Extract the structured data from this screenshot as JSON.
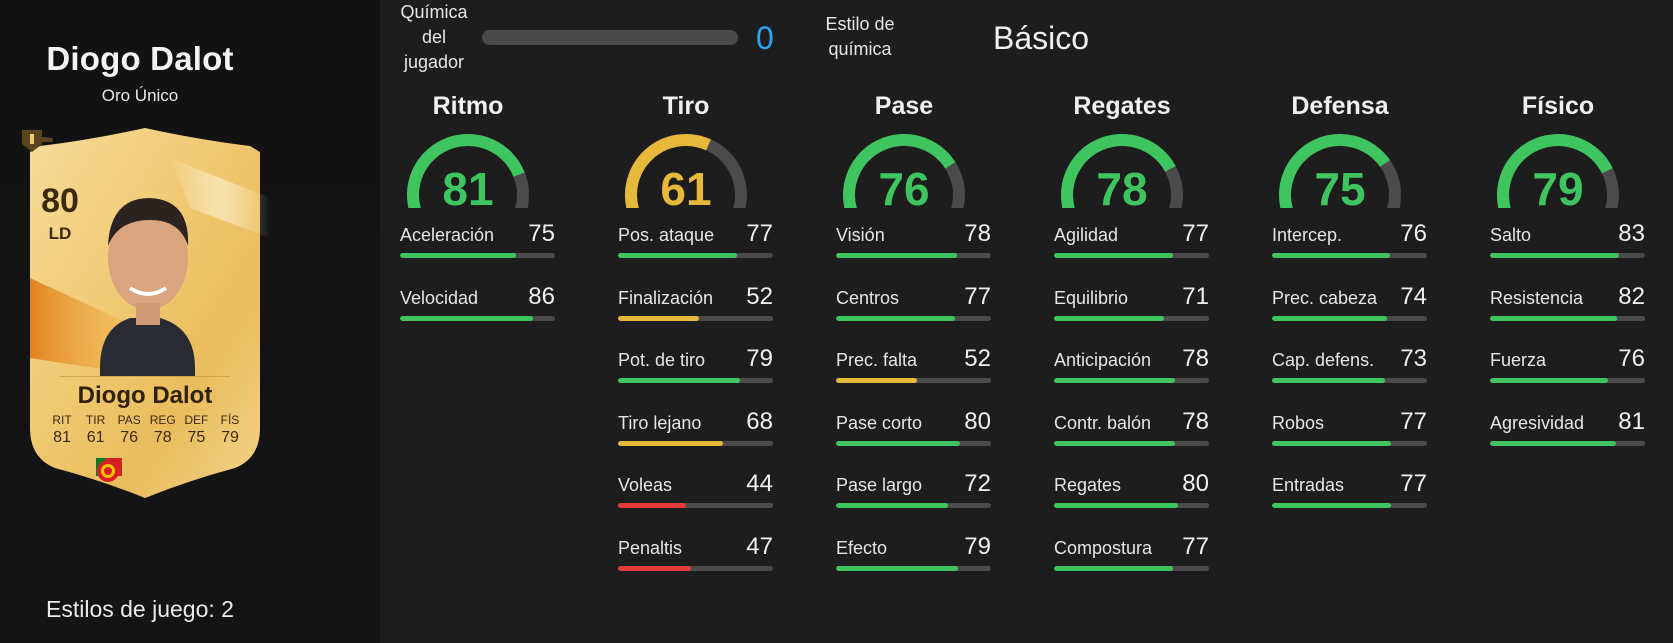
{
  "player": {
    "name": "Diogo Dalot",
    "card_type": "Oro Único",
    "playstyles": "Estilos de juego: 2"
  },
  "card": {
    "overall": "80",
    "position": "LD",
    "name": "Diogo Dalot",
    "stats": [
      {
        "label": "RIT",
        "value": "81"
      },
      {
        "label": "TIR",
        "value": "61"
      },
      {
        "label": "PAS",
        "value": "76"
      },
      {
        "label": "REG",
        "value": "78"
      },
      {
        "label": "DEF",
        "value": "75"
      },
      {
        "label": "FÍS",
        "value": "79"
      }
    ],
    "icons": [
      "boot-icon",
      "rank-badge-icon",
      "portugal-flag-icon",
      "premier-league-logo",
      "manchester-united-crest"
    ]
  },
  "header": {
    "chemistry_label": [
      "Química",
      "del",
      "jugador"
    ],
    "chemistry_value": "0",
    "chemistry_max": 3,
    "chem_style_label": [
      "Estilo de",
      "química"
    ],
    "chem_style_value": "Básico"
  },
  "colors": {
    "high": "#3fc560",
    "mid": "#e6b93a",
    "low": "#e23b3b",
    "track": "#4b4b4b",
    "chemistry": "#2aa4f4"
  },
  "categories": [
    {
      "name": "Ritmo",
      "value": 81,
      "attributes": [
        {
          "name": "Aceleración",
          "value": 75
        },
        {
          "name": "Velocidad",
          "value": 86
        }
      ]
    },
    {
      "name": "Tiro",
      "value": 61,
      "attributes": [
        {
          "name": "Pos. ataque",
          "value": 77
        },
        {
          "name": "Finalización",
          "value": 52
        },
        {
          "name": "Pot. de tiro",
          "value": 79
        },
        {
          "name": "Tiro lejano",
          "value": 68
        },
        {
          "name": "Voleas",
          "value": 44
        },
        {
          "name": "Penaltis",
          "value": 47
        }
      ]
    },
    {
      "name": "Pase",
      "value": 76,
      "attributes": [
        {
          "name": "Visión",
          "value": 78
        },
        {
          "name": "Centros",
          "value": 77
        },
        {
          "name": "Prec. falta",
          "value": 52
        },
        {
          "name": "Pase corto",
          "value": 80
        },
        {
          "name": "Pase largo",
          "value": 72
        },
        {
          "name": "Efecto",
          "value": 79
        }
      ]
    },
    {
      "name": "Regates",
      "value": 78,
      "attributes": [
        {
          "name": "Agilidad",
          "value": 77
        },
        {
          "name": "Equilibrio",
          "value": 71
        },
        {
          "name": "Anticipación",
          "value": 78
        },
        {
          "name": "Contr. balón",
          "value": 78
        },
        {
          "name": "Regates",
          "value": 80
        },
        {
          "name": "Compostura",
          "value": 77
        }
      ]
    },
    {
      "name": "Defensa",
      "value": 75,
      "attributes": [
        {
          "name": "Intercep.",
          "value": 76
        },
        {
          "name": "Prec. cabeza",
          "value": 74
        },
        {
          "name": "Cap. defens.",
          "value": 73
        },
        {
          "name": "Robos",
          "value": 77
        },
        {
          "name": "Entradas",
          "value": 77
        }
      ]
    },
    {
      "name": "Físico",
      "value": 79,
      "attributes": [
        {
          "name": "Salto",
          "value": 83
        },
        {
          "name": "Resistencia",
          "value": 82
        },
        {
          "name": "Fuerza",
          "value": 76
        },
        {
          "name": "Agresividad",
          "value": 81
        }
      ]
    }
  ]
}
